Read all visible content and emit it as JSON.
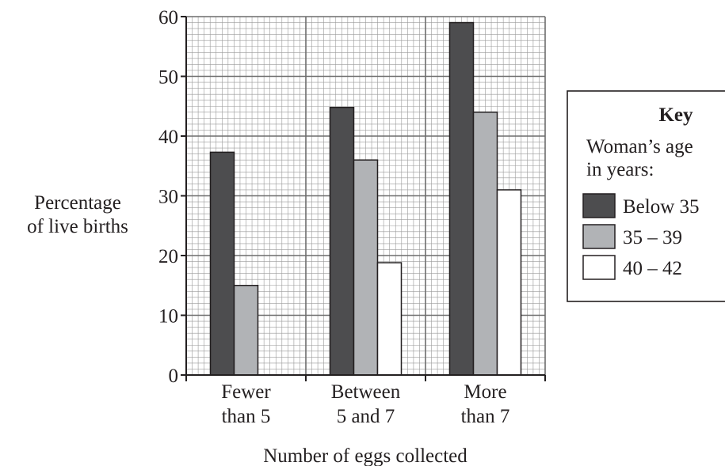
{
  "chart_data": {
    "type": "bar",
    "xlabel": "Number of eggs collected",
    "ylabel": [
      "Percentage",
      "of live births"
    ],
    "ylim": [
      0,
      60
    ],
    "yticks": [
      0,
      10,
      20,
      30,
      40,
      50,
      60
    ],
    "grid": true,
    "categories": [
      [
        "Fewer",
        "than 5"
      ],
      [
        "Between",
        "5 and 7"
      ],
      [
        "More",
        "than 7"
      ]
    ],
    "series": [
      {
        "name": "Below 35",
        "color": "#4d4d4f",
        "values": [
          37.3,
          44.8,
          59
        ]
      },
      {
        "name": "35 – 39",
        "color": "#b1b3b6",
        "values": [
          15,
          36,
          44
        ]
      },
      {
        "name": "40 – 42",
        "color": "#ffffff",
        "values": [
          0,
          18.8,
          31
        ]
      }
    ],
    "legend": {
      "placement": "right",
      "title": "Key",
      "subtitle": [
        "Woman’s age",
        "in years:"
      ]
    }
  }
}
